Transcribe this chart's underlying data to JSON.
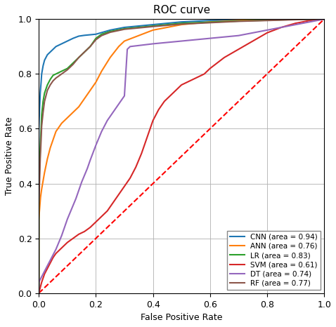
{
  "title": "ROC curve",
  "xlabel": "False Positive Rate",
  "ylabel": "True Positive Rate",
  "xlim": [
    0.0,
    1.0
  ],
  "ylim": [
    0.0,
    1.0
  ],
  "curves": {
    "CNN": {
      "color": "#1f77b4",
      "area": 0.94,
      "fpr": [
        0.0,
        0.0,
        0.003,
        0.005,
        0.008,
        0.01,
        0.015,
        0.02,
        0.03,
        0.04,
        0.05,
        0.06,
        0.08,
        0.1,
        0.12,
        0.14,
        0.16,
        0.18,
        0.2,
        0.25,
        0.3,
        0.4,
        0.5,
        0.6,
        0.7,
        0.8,
        0.9,
        1.0
      ],
      "tpr": [
        0.0,
        0.6,
        0.68,
        0.73,
        0.77,
        0.8,
        0.83,
        0.85,
        0.87,
        0.88,
        0.89,
        0.9,
        0.91,
        0.92,
        0.93,
        0.938,
        0.941,
        0.943,
        0.945,
        0.96,
        0.97,
        0.98,
        0.99,
        0.995,
        0.997,
        0.999,
        1.0,
        1.0
      ]
    },
    "ANN": {
      "color": "#ff7f0e",
      "area": 0.76,
      "fpr": [
        0.0,
        0.0,
        0.003,
        0.006,
        0.01,
        0.015,
        0.02,
        0.03,
        0.04,
        0.05,
        0.06,
        0.08,
        0.1,
        0.12,
        0.14,
        0.16,
        0.18,
        0.2,
        0.22,
        0.25,
        0.28,
        0.3,
        0.35,
        0.4,
        0.5,
        0.6,
        0.7,
        0.8,
        0.9,
        1.0
      ],
      "tpr": [
        0.0,
        0.27,
        0.31,
        0.35,
        0.38,
        0.41,
        0.44,
        0.49,
        0.53,
        0.56,
        0.59,
        0.62,
        0.64,
        0.66,
        0.68,
        0.71,
        0.74,
        0.77,
        0.81,
        0.86,
        0.9,
        0.92,
        0.94,
        0.96,
        0.98,
        0.99,
        0.995,
        0.998,
        1.0,
        1.0
      ]
    },
    "LR": {
      "color": "#2ca02c",
      "area": 0.83,
      "fpr": [
        0.0,
        0.0,
        0.003,
        0.005,
        0.008,
        0.01,
        0.015,
        0.02,
        0.03,
        0.04,
        0.05,
        0.06,
        0.08,
        0.1,
        0.12,
        0.14,
        0.16,
        0.18,
        0.2,
        0.22,
        0.25,
        0.3,
        0.4,
        0.5,
        0.7,
        0.9,
        1.0
      ],
      "tpr": [
        0.0,
        0.37,
        0.47,
        0.53,
        0.6,
        0.65,
        0.7,
        0.73,
        0.76,
        0.78,
        0.795,
        0.8,
        0.81,
        0.82,
        0.84,
        0.86,
        0.88,
        0.9,
        0.93,
        0.945,
        0.955,
        0.965,
        0.975,
        0.985,
        0.993,
        0.999,
        1.0
      ]
    },
    "SVM": {
      "color": "#d62728",
      "area": 0.61,
      "fpr": [
        0.0,
        0.01,
        0.02,
        0.03,
        0.04,
        0.05,
        0.06,
        0.07,
        0.08,
        0.09,
        0.1,
        0.12,
        0.14,
        0.16,
        0.18,
        0.2,
        0.22,
        0.24,
        0.26,
        0.28,
        0.3,
        0.32,
        0.34,
        0.36,
        0.38,
        0.4,
        0.42,
        0.44,
        0.46,
        0.48,
        0.5,
        0.52,
        0.54,
        0.56,
        0.58,
        0.6,
        0.65,
        0.7,
        0.75,
        0.8,
        0.85,
        0.9,
        0.95,
        1.0
      ],
      "tpr": [
        0.0,
        0.04,
        0.07,
        0.09,
        0.11,
        0.13,
        0.145,
        0.155,
        0.165,
        0.175,
        0.185,
        0.2,
        0.215,
        0.225,
        0.24,
        0.26,
        0.28,
        0.3,
        0.33,
        0.36,
        0.39,
        0.42,
        0.46,
        0.51,
        0.57,
        0.63,
        0.67,
        0.7,
        0.72,
        0.74,
        0.76,
        0.77,
        0.78,
        0.79,
        0.8,
        0.82,
        0.86,
        0.89,
        0.92,
        0.95,
        0.97,
        0.985,
        0.995,
        1.0
      ]
    },
    "DT": {
      "color": "#9467bd",
      "area": 0.74,
      "fpr": [
        0.0,
        0.0,
        0.01,
        0.02,
        0.03,
        0.04,
        0.05,
        0.06,
        0.07,
        0.08,
        0.09,
        0.1,
        0.11,
        0.12,
        0.13,
        0.14,
        0.15,
        0.16,
        0.17,
        0.18,
        0.2,
        0.22,
        0.24,
        0.26,
        0.28,
        0.3,
        0.31,
        0.32,
        0.4,
        0.5,
        0.6,
        0.7,
        0.8,
        0.9,
        1.0
      ],
      "tpr": [
        0.0,
        0.04,
        0.06,
        0.08,
        0.1,
        0.12,
        0.14,
        0.16,
        0.185,
        0.21,
        0.24,
        0.27,
        0.295,
        0.32,
        0.345,
        0.375,
        0.405,
        0.43,
        0.455,
        0.485,
        0.54,
        0.59,
        0.63,
        0.66,
        0.69,
        0.72,
        0.89,
        0.9,
        0.91,
        0.92,
        0.93,
        0.94,
        0.96,
        0.98,
        1.0
      ]
    },
    "RF": {
      "color": "#8c564b",
      "area": 0.77,
      "fpr": [
        0.0,
        0.0,
        0.003,
        0.005,
        0.008,
        0.01,
        0.015,
        0.02,
        0.03,
        0.04,
        0.05,
        0.06,
        0.08,
        0.1,
        0.12,
        0.14,
        0.16,
        0.18,
        0.2,
        0.22,
        0.25,
        0.3,
        0.4,
        0.5,
        0.7,
        0.9,
        1.0
      ],
      "tpr": [
        0.0,
        0.32,
        0.42,
        0.49,
        0.56,
        0.61,
        0.66,
        0.7,
        0.74,
        0.76,
        0.775,
        0.785,
        0.8,
        0.815,
        0.835,
        0.86,
        0.88,
        0.9,
        0.925,
        0.94,
        0.952,
        0.963,
        0.973,
        0.982,
        0.992,
        0.998,
        1.0
      ]
    }
  },
  "legend_labels": {
    "CNN": "CNN (area = 0.94)",
    "ANN": "ANN (area = 0.76)",
    "LR": "LR (area = 0.83)",
    "SVM": "SVM (area = 0.61)",
    "DT": "DT (area = 0.74)",
    "RF": "RF (area = 0.77)"
  },
  "diagonal_color": "#ff0000",
  "grid_color": "#b0b0b0",
  "background_color": "#ffffff",
  "figsize": [
    4.78,
    4.66
  ],
  "dpi": 100
}
